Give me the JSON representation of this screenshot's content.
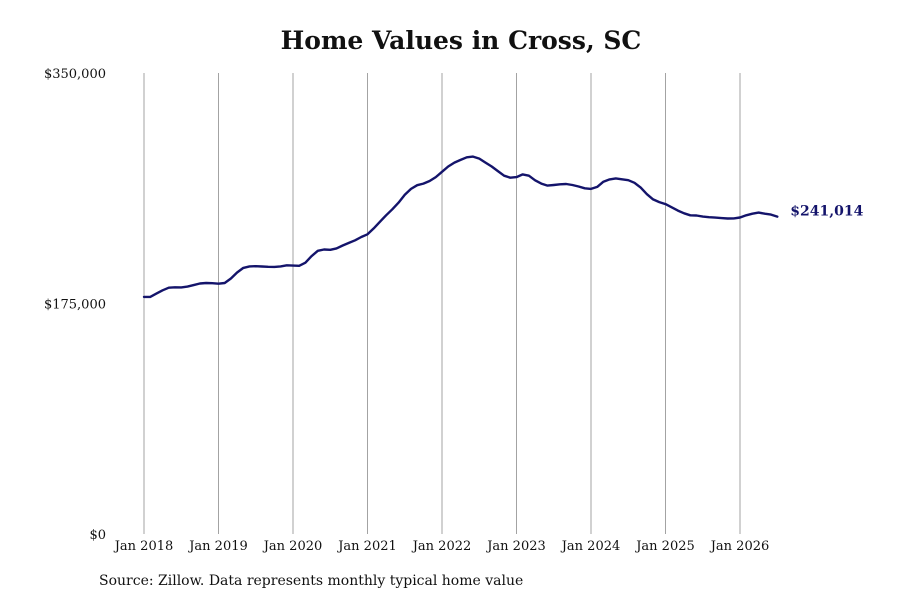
{
  "chart_data": {
    "type": "line",
    "title": "Home Values in Cross, SC",
    "xlabel": "",
    "ylabel": "",
    "x_tick_labels": [
      "Jan 2018",
      "Jan 2019",
      "Jan 2020",
      "Jan 2021",
      "Jan 2022",
      "Jan 2023",
      "Jan 2024",
      "Jan 2025",
      "Jan 2026"
    ],
    "y_tick_labels": [
      "$0",
      "$175,000",
      "$350,000"
    ],
    "y_ticks": [
      0,
      175000,
      350000
    ],
    "ylim": [
      0,
      350000
    ],
    "xlim": [
      "2018-01",
      "2026-07"
    ],
    "grid": "vertical lines at January of each year",
    "line_color": "#14146b",
    "end_label": "$241,014",
    "series": [
      {
        "x": [
          "2018-01",
          "2018-02",
          "2018-03",
          "2018-04",
          "2018-05",
          "2018-06",
          "2018-07",
          "2018-08",
          "2018-09",
          "2018-10",
          "2018-11",
          "2018-12",
          "2019-01",
          "2019-02",
          "2019-03",
          "2019-04",
          "2019-05",
          "2019-06",
          "2019-07",
          "2019-08",
          "2019-09",
          "2019-10",
          "2019-11",
          "2019-12",
          "2020-01",
          "2020-02",
          "2020-03",
          "2020-04",
          "2020-05",
          "2020-06",
          "2020-07",
          "2020-08",
          "2020-09",
          "2020-10",
          "2020-11",
          "2020-12",
          "2021-01",
          "2021-02",
          "2021-03",
          "2021-04",
          "2021-05",
          "2021-06",
          "2021-07",
          "2021-08",
          "2021-09",
          "2021-10",
          "2021-11",
          "2021-12",
          "2022-01",
          "2022-02",
          "2022-03",
          "2022-04",
          "2022-05",
          "2022-06",
          "2022-07",
          "2022-08",
          "2022-09",
          "2022-10",
          "2022-11",
          "2022-12",
          "2023-01",
          "2023-02",
          "2023-03",
          "2023-04",
          "2023-05",
          "2023-06",
          "2023-07",
          "2023-08",
          "2023-09",
          "2023-10",
          "2023-11",
          "2023-12",
          "2024-01",
          "2024-02",
          "2024-03",
          "2024-04",
          "2024-05",
          "2024-06",
          "2024-07",
          "2024-08",
          "2024-09",
          "2024-10",
          "2024-11",
          "2024-12",
          "2025-01",
          "2025-02",
          "2025-03",
          "2025-04",
          "2025-05",
          "2025-06",
          "2025-07",
          "2025-08",
          "2025-09",
          "2025-10",
          "2025-11",
          "2025-12",
          "2026-01",
          "2026-02",
          "2026-03",
          "2026-04",
          "2026-05",
          "2026-06",
          "2026-07"
        ],
        "values": [
          180000,
          180000,
          182500,
          185000,
          187000,
          187300,
          187200,
          187800,
          189000,
          190200,
          190600,
          190400,
          190000,
          190600,
          194000,
          198500,
          202000,
          203200,
          203300,
          203100,
          202900,
          202800,
          203200,
          204000,
          203800,
          203600,
          206000,
          211000,
          215000,
          216000,
          215800,
          216800,
          219000,
          221000,
          223000,
          225500,
          227500,
          232000,
          237000,
          242000,
          246500,
          251500,
          257500,
          262000,
          264800,
          266000,
          268000,
          271000,
          275000,
          279000,
          282000,
          284000,
          286000,
          286500,
          285000,
          282000,
          279000,
          275500,
          272000,
          270500,
          271000,
          273000,
          272000,
          268500,
          266000,
          264500,
          265000,
          265500,
          265700,
          265000,
          263800,
          262500,
          262000,
          263500,
          267500,
          269200,
          270000,
          269300,
          268600,
          266600,
          263000,
          258000,
          254000,
          252000,
          250500,
          248000,
          245500,
          243500,
          242000,
          241800,
          241000,
          240500,
          240200,
          239800,
          239500,
          239600,
          240300,
          242000,
          243200,
          244000,
          243200,
          242500,
          241014
        ]
      }
    ]
  },
  "footer": {
    "source": "Source: Zillow. Data represents monthly typical home value"
  }
}
